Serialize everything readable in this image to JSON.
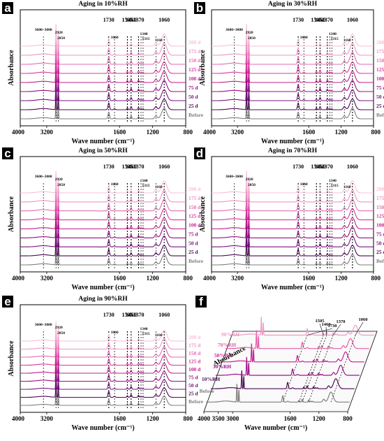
{
  "chart_data": [
    {
      "letter": "a",
      "type": "line",
      "title": "Aging in 10%RH",
      "xlabel": "Wave number (cm⁻¹)",
      "ylabel": "Absorbance",
      "xlim": [
        4000,
        800
      ],
      "x_ticks": [
        "4000",
        "3200",
        "1600",
        "1200",
        "800"
      ],
      "x_tick_values": [
        4000,
        3200,
        1600,
        1200,
        800
      ],
      "series_names": [
        "Before",
        "25 d",
        "50 d",
        "75 d",
        "100 d",
        "125 d",
        "150 d",
        "175 d",
        "200 d"
      ],
      "peaks_top": [
        "1730",
        "1505",
        "1460",
        "1370",
        "1060"
      ],
      "peaks_small": [
        "3600~3000",
        "2920",
        "2850",
        "1660",
        "1340",
        "1315",
        "1160"
      ],
      "peak_positions": [
        3300,
        2920,
        2850,
        1730,
        1660,
        1505,
        1460,
        1370,
        1340,
        1315,
        1160,
        1060
      ]
    },
    {
      "letter": "b",
      "type": "line",
      "title": "Aging in 30%RH",
      "xlabel": "Wave number (cm⁻¹)",
      "ylabel": "Absorbance",
      "xlim": [
        4000,
        800
      ],
      "x_ticks": [
        "4000",
        "3200",
        "1600",
        "1200",
        "800"
      ],
      "x_tick_values": [
        4000,
        3200,
        1600,
        1200,
        800
      ],
      "series_names": [
        "Before",
        "25 d",
        "50 d",
        "75 d",
        "100 d",
        "125 d",
        "150 d",
        "175 d",
        "200 d"
      ],
      "peaks_top": [
        "1730",
        "1505",
        "1460",
        "1370",
        "1060"
      ],
      "peaks_small": [
        "3600~3000",
        "2920",
        "2850",
        "1660",
        "1340",
        "1315",
        "1160"
      ],
      "peak_positions": [
        3300,
        2920,
        2850,
        1730,
        1660,
        1505,
        1460,
        1370,
        1340,
        1315,
        1160,
        1060
      ]
    },
    {
      "letter": "c",
      "type": "line",
      "title": "Aging in 50%RH",
      "xlabel": "Wave number (cm⁻¹)",
      "ylabel": "Absorbance",
      "xlim": [
        4000,
        800
      ],
      "x_ticks": [
        "4000",
        "3200",
        "1600",
        "1200",
        "800"
      ],
      "x_tick_values": [
        4000,
        3200,
        1600,
        1200,
        800
      ],
      "series_names": [
        "Before",
        "25 d",
        "50 d",
        "75 d",
        "100 d",
        "125 d",
        "150 d",
        "175 d",
        "200 d"
      ],
      "peaks_top": [
        "1730",
        "1505",
        "1460",
        "1370",
        "1060"
      ],
      "peaks_small": [
        "3600~3000",
        "2920",
        "2850",
        "1660",
        "1340",
        "1315",
        "1160"
      ],
      "peak_positions": [
        3300,
        2920,
        2850,
        1730,
        1660,
        1505,
        1460,
        1370,
        1340,
        1315,
        1160,
        1060
      ]
    },
    {
      "letter": "d",
      "type": "line",
      "title": "Aging in 70%RH",
      "xlabel": "Wave number (cm⁻¹)",
      "ylabel": "Absorbance",
      "xlim": [
        4000,
        800
      ],
      "x_ticks": [
        "4000",
        "3200",
        "1600",
        "1200",
        "800"
      ],
      "x_tick_values": [
        4000,
        3200,
        1600,
        1200,
        800
      ],
      "series_names": [
        "Before",
        "25 d",
        "50 d",
        "75 d",
        "100 d",
        "125 d",
        "150 d",
        "175 d",
        "200 d"
      ],
      "peaks_top": [
        "1730",
        "1505",
        "1460",
        "1370",
        "1060"
      ],
      "peaks_small": [
        "3600~3000",
        "2920",
        "2850",
        "1660",
        "1340",
        "1315",
        "1160"
      ],
      "peak_positions": [
        3300,
        2920,
        2850,
        1730,
        1660,
        1505,
        1460,
        1370,
        1340,
        1315,
        1160,
        1060
      ]
    },
    {
      "letter": "e",
      "type": "line",
      "title": "Aging in 90%RH",
      "xlabel": "Wave number (cm⁻¹)",
      "ylabel": "Absorbance",
      "xlim": [
        4000,
        800
      ],
      "x_ticks": [
        "4000",
        "3200",
        "1600",
        "1200",
        "800"
      ],
      "x_tick_values": [
        4000,
        3200,
        1600,
        1200,
        800
      ],
      "series_names": [
        "Before",
        "25 d",
        "50 d",
        "75 d",
        "100 d",
        "125 d",
        "150 d",
        "175 d",
        "200 d"
      ],
      "peaks_top": [
        "1730",
        "1505",
        "1460",
        "1370",
        "1060"
      ],
      "peaks_small": [
        "3600~3000",
        "2920",
        "2850",
        "1660",
        "1340",
        "1315",
        "1160"
      ],
      "peak_positions": [
        3300,
        2920,
        2850,
        1730,
        1660,
        1505,
        1460,
        1370,
        1340,
        1315,
        1160,
        1060
      ]
    },
    {
      "letter": "f",
      "type": "line",
      "title": "",
      "xlabel": "Wave number (cm⁻¹)",
      "ylabel": "Absorbance",
      "xlim": [
        4000,
        800
      ],
      "x_ticks": [
        "4000",
        "3500",
        "3000",
        "1600",
        "1200",
        "800"
      ],
      "x_tick_values": [
        4000,
        3500,
        3000,
        1600,
        1200,
        800
      ],
      "series_names": [
        "Before",
        "10%RH",
        "30%RH",
        "50%RH",
        "70%RH",
        "90%RH"
      ],
      "peaks_top": [
        "1730",
        "1505",
        "1460",
        "1370",
        "1060"
      ],
      "peak_positions": [
        1730,
        1505,
        1460,
        1370,
        1060
      ]
    }
  ],
  "colors": {
    "series_panels": [
      "#7f7f7f",
      "#4e0a55",
      "#7a1580",
      "#9a0f86",
      "#bf1f8d",
      "#d8389e",
      "#e56bb4",
      "#ee96c7",
      "#f6c2da"
    ],
    "series_3d": [
      "#7f7f7f",
      "#4e0a55",
      "#a0128c",
      "#c51f8f",
      "#e45ea8",
      "#ef9cc4"
    ],
    "label_box": "#000000"
  }
}
